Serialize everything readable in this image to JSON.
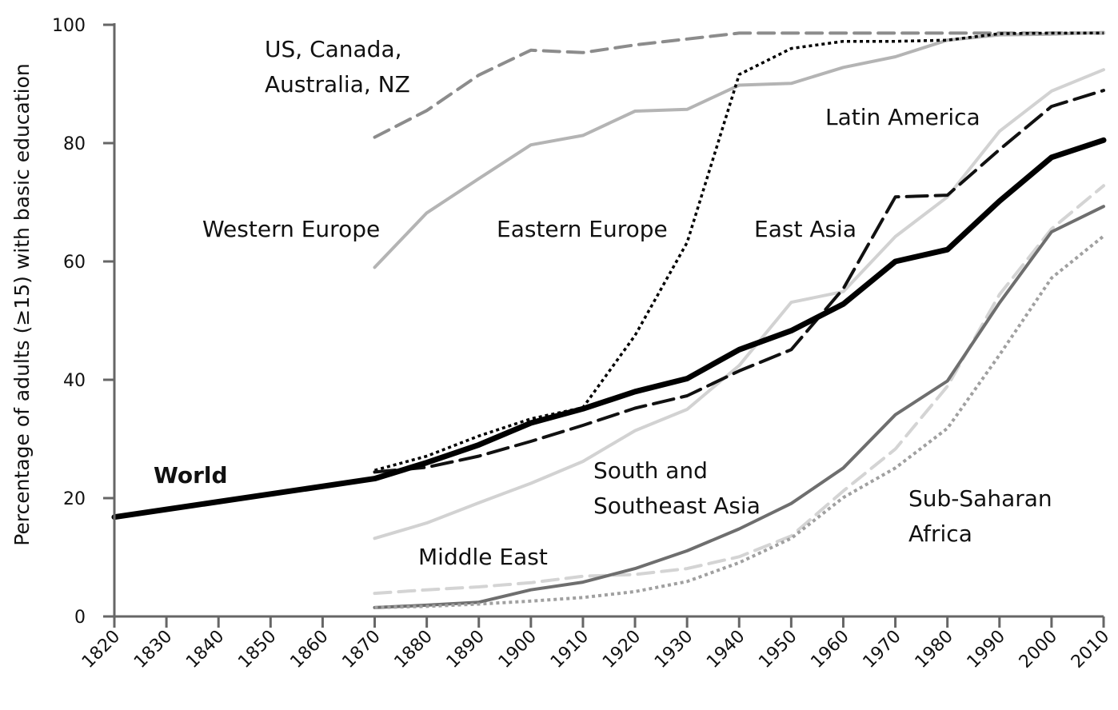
{
  "chart_data": {
    "type": "line",
    "title": "",
    "xlabel": "",
    "ylabel": "Percentage of adults (≥15) with basic education",
    "xlim": [
      1820,
      2010
    ],
    "ylim": [
      0,
      100
    ],
    "xticks": [
      1820,
      1830,
      1840,
      1850,
      1860,
      1870,
      1880,
      1890,
      1900,
      1910,
      1920,
      1930,
      1940,
      1950,
      1960,
      1970,
      1980,
      1990,
      2000,
      2010
    ],
    "yticks": [
      0,
      20,
      40,
      60,
      80,
      100
    ],
    "grid": false,
    "legend": "none",
    "series": [
      {
        "name": "US, Canada, Australia, NZ",
        "color": "#8c8c8c",
        "dash": "dashed",
        "x": [
          1870,
          1880,
          1890,
          1900,
          1910,
          1920,
          1930,
          1940,
          1950,
          1960,
          1970,
          1980,
          1990,
          2000,
          2010
        ],
        "y": [
          81,
          85.5,
          91.5,
          95.7,
          95.3,
          96.6,
          97.6,
          98.6,
          98.6,
          98.6,
          98.6,
          98.6,
          98.6,
          98.6,
          98.6
        ]
      },
      {
        "name": "Western Europe",
        "color": "#b4b4b4",
        "dash": "solid",
        "x": [
          1870,
          1880,
          1890,
          1900,
          1910,
          1920,
          1930,
          1940,
          1950,
          1960,
          1970,
          1980,
          1990,
          2000,
          2010
        ],
        "y": [
          59,
          68.2,
          74,
          79.7,
          81.3,
          85.4,
          85.7,
          89.8,
          90.1,
          92.8,
          94.6,
          97.4,
          98.3,
          98.4,
          98.7
        ]
      },
      {
        "name": "Eastern Europe",
        "color": "#000000",
        "dash": "dotted",
        "x": [
          1870,
          1880,
          1890,
          1900,
          1910,
          1920,
          1930,
          1940,
          1950,
          1960,
          1970,
          1980,
          1990,
          2000,
          2010
        ],
        "y": [
          24.7,
          27.1,
          30.5,
          33.4,
          35.3,
          47.5,
          63.2,
          91.6,
          96,
          97.2,
          97.2,
          97.4,
          98.5,
          98.6,
          98.6
        ]
      },
      {
        "name": "Latin America",
        "color": "#d2d2d2",
        "dash": "solid",
        "x": [
          1870,
          1880,
          1890,
          1900,
          1910,
          1920,
          1930,
          1940,
          1950,
          1960,
          1970,
          1980,
          1990,
          2000,
          2010
        ],
        "y": [
          13.2,
          15.8,
          19.2,
          22.5,
          26.2,
          31.4,
          35,
          42.4,
          53.1,
          54.9,
          64.2,
          70.9,
          82,
          88.8,
          92.4
        ]
      },
      {
        "name": "East Asia",
        "color": "#111111",
        "dash": "longdash",
        "x": [
          1870,
          1880,
          1890,
          1900,
          1910,
          1920,
          1930,
          1940,
          1950,
          1960,
          1970,
          1980,
          1990,
          2000,
          2010
        ],
        "y": [
          24.4,
          25.2,
          27.1,
          29.6,
          32.3,
          35.2,
          37.3,
          41.5,
          45.1,
          55.4,
          70.9,
          71.2,
          78.9,
          86.2,
          88.9
        ]
      },
      {
        "name": "World",
        "color": "#000000",
        "dash": "solid",
        "x": [
          1820,
          1870,
          1880,
          1890,
          1900,
          1910,
          1920,
          1930,
          1940,
          1950,
          1960,
          1970,
          1980,
          1990,
          2000,
          2010
        ],
        "y": [
          16.8,
          23.3,
          26,
          29,
          32.7,
          35.1,
          38,
          40.2,
          45.1,
          48.3,
          52.8,
          60,
          62,
          70.2,
          77.6,
          80.5
        ]
      },
      {
        "name": "Middle East",
        "color": "#d4d4d4",
        "dash": "dashed",
        "x": [
          1870,
          1880,
          1890,
          1900,
          1910,
          1920,
          1930,
          1940,
          1950,
          1960,
          1970,
          1980,
          1990,
          2000,
          2010
        ],
        "y": [
          3.9,
          4.5,
          5,
          5.7,
          6.8,
          7.1,
          8.1,
          10.1,
          13.6,
          21.2,
          28.3,
          38.9,
          54.4,
          65.5,
          72.8
        ]
      },
      {
        "name": "South and Southeast Asia",
        "color": "#6e6e6e",
        "dash": "solid",
        "x": [
          1870,
          1880,
          1890,
          1900,
          1910,
          1920,
          1930,
          1940,
          1950,
          1960,
          1970,
          1980,
          1990,
          2000,
          2010
        ],
        "y": [
          1.5,
          1.9,
          2.4,
          4.5,
          5.8,
          8.1,
          11.1,
          14.8,
          19.1,
          25.1,
          34.1,
          39.8,
          53,
          65,
          69.3
        ]
      },
      {
        "name": "Sub-Saharan Africa",
        "color": "#a0a0a0",
        "dash": "dotted",
        "x": [
          1870,
          1880,
          1890,
          1900,
          1910,
          1920,
          1930,
          1940,
          1950,
          1960,
          1970,
          1980,
          1990,
          2000,
          2010
        ],
        "y": [
          1.5,
          1.7,
          2.1,
          2.6,
          3.2,
          4.2,
          5.9,
          9.1,
          13.2,
          20.1,
          25.1,
          31.8,
          44.2,
          57.2,
          64.3
        ]
      }
    ],
    "annotations": [
      {
        "id": "us",
        "lines": [
          "US, Canada,",
          "Australia, NZ"
        ]
      },
      {
        "id": "we",
        "lines": [
          "Western Europe"
        ]
      },
      {
        "id": "ee",
        "lines": [
          "Eastern Europe"
        ]
      },
      {
        "id": "la",
        "lines": [
          "Latin America"
        ]
      },
      {
        "id": "ea",
        "lines": [
          "East Asia"
        ]
      },
      {
        "id": "world",
        "lines": [
          "World"
        ]
      },
      {
        "id": "sa",
        "lines": [
          "South and",
          "Southeast Asia"
        ]
      },
      {
        "id": "me",
        "lines": [
          "Middle East"
        ]
      },
      {
        "id": "ssa",
        "lines": [
          "Sub-Saharan",
          "Africa"
        ]
      }
    ]
  }
}
